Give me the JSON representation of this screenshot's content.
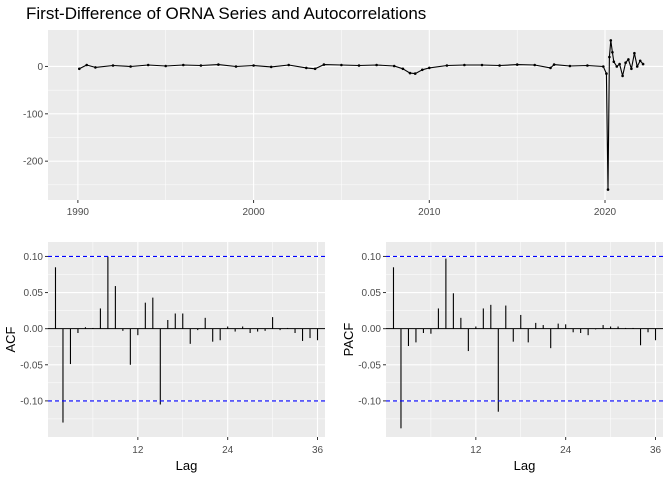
{
  "page_title": "First-Difference of ORNA Series and Autocorrelations",
  "colors": {
    "panel": "#ebebeb",
    "grid": "#ffffff",
    "line": "#000000",
    "ci": "#0000ff",
    "tick_text": "#4d4d4d"
  },
  "chart_data": [
    {
      "type": "line",
      "title": "",
      "xlabel": "",
      "ylabel": "",
      "x_ticks": [
        "1990",
        "2000",
        "2010",
        "2020"
      ],
      "y_ticks": [
        "0",
        "-100",
        "-200"
      ],
      "xlim": [
        1988.3,
        2023.3
      ],
      "ylim": [
        -282,
        77
      ],
      "grid": true,
      "points_marked": true,
      "series": [
        {
          "x": [
            1990.08,
            1990.5,
            1991.0,
            1992.0,
            1993.0,
            1994.0,
            1995.0,
            1996.0,
            1997.0,
            1998.0,
            1999.0,
            2000.0,
            2001.0,
            2002.0,
            2003.0,
            2003.5,
            2004.0,
            2005.0,
            2006.0,
            2007.0,
            2008.0,
            2008.5,
            2008.9,
            2009.2,
            2009.6,
            2010.0,
            2011.0,
            2012.0,
            2013.0,
            2014.0,
            2015.0,
            2016.0,
            2016.9,
            2017.1,
            2018.0,
            2019.0,
            2019.9,
            2020.08,
            2020.17,
            2020.25,
            2020.33,
            2020.42,
            2020.5,
            2020.67,
            2020.83,
            2021.0,
            2021.17,
            2021.33,
            2021.5,
            2021.67,
            2021.83,
            2022.0,
            2022.17
          ],
          "y": [
            -5,
            3,
            -2,
            2,
            0,
            3,
            1,
            3,
            2,
            4,
            0,
            2,
            -1,
            3,
            -3,
            -5,
            4,
            3,
            2,
            3,
            1,
            -5,
            -14,
            -15,
            -7,
            -3,
            2,
            3,
            3,
            2,
            4,
            3,
            -3,
            4,
            1,
            2,
            0,
            -15,
            -260,
            20,
            55,
            30,
            10,
            0,
            5,
            -20,
            8,
            15,
            -5,
            28,
            0,
            12,
            5
          ]
        }
      ]
    },
    {
      "type": "bar",
      "title": "",
      "xlabel": "Lag",
      "ylabel": "ACF",
      "x_ticks": [
        "12",
        "24",
        "36"
      ],
      "y_ticks": [
        "0.10",
        "0.05",
        "0.00",
        "-0.05",
        "-0.10"
      ],
      "xlim": [
        0,
        37
      ],
      "ylim": [
        -0.15,
        0.12
      ],
      "ci": [
        0.1,
        -0.1
      ],
      "grid": true,
      "lags": [
        1,
        2,
        3,
        4,
        5,
        6,
        7,
        8,
        9,
        10,
        11,
        12,
        13,
        14,
        15,
        16,
        17,
        18,
        19,
        20,
        21,
        22,
        23,
        24,
        25,
        26,
        27,
        28,
        29,
        30,
        31,
        32,
        33,
        34,
        35,
        36
      ],
      "values": [
        0.085,
        -0.13,
        -0.049,
        -0.006,
        0.002,
        0.001,
        0.028,
        0.1,
        0.059,
        -0.003,
        -0.05,
        -0.009,
        0.036,
        0.043,
        -0.105,
        0.012,
        0.021,
        0.021,
        -0.021,
        -0.002,
        0.015,
        -0.018,
        -0.016,
        0.003,
        -0.004,
        0.003,
        -0.006,
        -0.004,
        -0.003,
        0.016,
        -0.002,
        0.001,
        -0.006,
        -0.017,
        -0.013,
        -0.016
      ]
    },
    {
      "type": "bar",
      "title": "",
      "xlabel": "Lag",
      "ylabel": "PACF",
      "x_ticks": [
        "12",
        "24",
        "36"
      ],
      "y_ticks": [
        "0.10",
        "0.05",
        "0.00",
        "-0.05",
        "-0.10"
      ],
      "xlim": [
        0,
        37
      ],
      "ylim": [
        -0.15,
        0.12
      ],
      "ci": [
        0.1,
        -0.1
      ],
      "grid": true,
      "lags": [
        1,
        2,
        3,
        4,
        5,
        6,
        7,
        8,
        9,
        10,
        11,
        12,
        13,
        14,
        15,
        16,
        17,
        18,
        19,
        20,
        21,
        22,
        23,
        24,
        25,
        26,
        27,
        28,
        29,
        30,
        31,
        32,
        33,
        34,
        35,
        36
      ],
      "values": [
        0.085,
        -0.138,
        -0.024,
        -0.019,
        -0.006,
        -0.007,
        0.028,
        0.097,
        0.049,
        0.015,
        -0.031,
        0.003,
        0.028,
        0.033,
        -0.115,
        0.032,
        -0.018,
        0.019,
        -0.019,
        0.008,
        0.005,
        -0.027,
        0.007,
        0.006,
        -0.005,
        -0.006,
        -0.009,
        -0.001,
        0.005,
        0.003,
        0.003,
        0.001,
        0.001,
        -0.023,
        -0.005,
        -0.016
      ]
    }
  ]
}
